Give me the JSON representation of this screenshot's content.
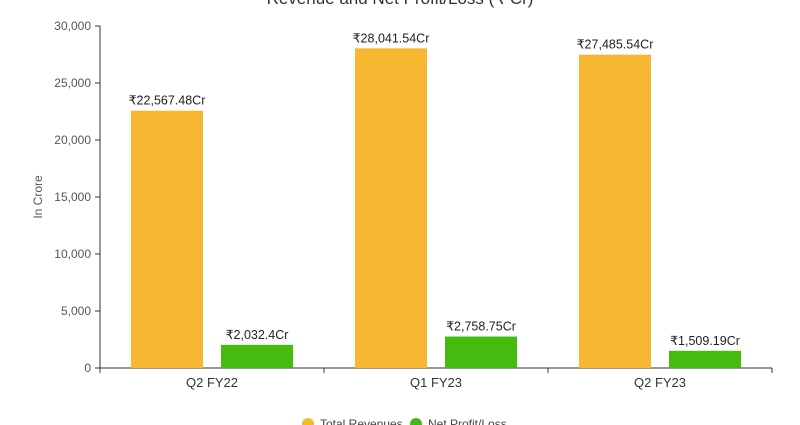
{
  "chart_data": {
    "type": "bar",
    "title": "Revenue and Net Profit/Loss (₹ Cr)",
    "ylabel": "In Crore",
    "xlabel": "",
    "ylim": [
      0,
      30000
    ],
    "yticks": [
      "0",
      "5,000",
      "10,000",
      "15,000",
      "20,000",
      "25,000",
      "30,000"
    ],
    "categories": [
      "Q2 FY22",
      "Q1 FY23",
      "Q2 FY23"
    ],
    "series": [
      {
        "name": "Total Revenues",
        "color": "#F7B731",
        "values": [
          22567.48,
          28041.54,
          27485.54
        ],
        "labels": [
          "₹22,567.48Cr",
          "₹28,041.54Cr",
          "₹27,485.54Cr"
        ]
      },
      {
        "name": "Net Profit/Loss",
        "color": "#44BB0E",
        "values": [
          2032.4,
          2758.75,
          1509.19
        ],
        "labels": [
          "₹2,032.4Cr",
          "₹2,758.75Cr",
          "₹1,509.19Cr"
        ]
      }
    ],
    "grid": false,
    "legend_position": "bottom-center"
  }
}
